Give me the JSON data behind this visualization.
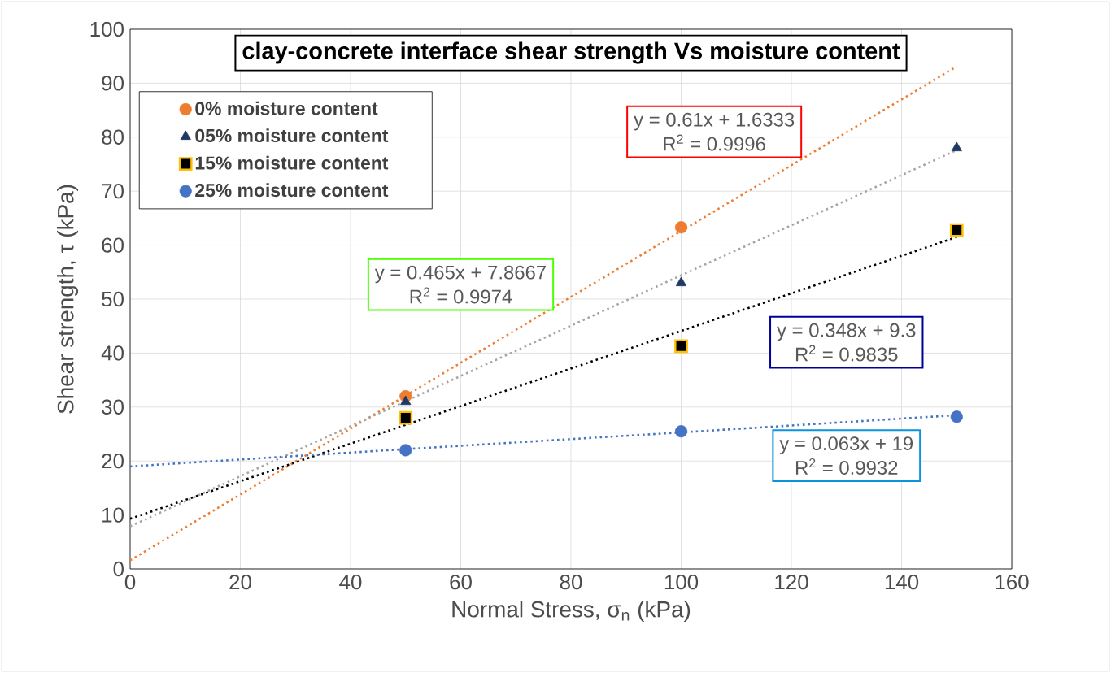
{
  "chart_data": {
    "type": "scatter",
    "title": "clay-concrete interface shear strength Vs moisture content",
    "xlabel": "Normal Stress, σ$_{n}$ (kPa)",
    "ylabel": "Shear strength, τ (kPa)",
    "x": [
      50,
      100,
      150
    ],
    "series": [
      {
        "name": "0% moisture content",
        "color": "#ed7d31",
        "marker": "circle",
        "values": [
          32,
          63.3,
          null
        ]
      },
      {
        "name": "05% moisture content",
        "color": "#1f3864",
        "marker": "triangle",
        "values": [
          31,
          53,
          78
        ]
      },
      {
        "name": "15% moisture content",
        "color": "#000000",
        "marker": "square",
        "values": [
          28,
          41.3,
          62.8
        ]
      },
      {
        "name": "25% moisture content",
        "color": "#4472c4",
        "marker": "circle",
        "values": [
          22,
          25.5,
          28.2
        ]
      },
      {
        "type": "line",
        "color": "#ed7d31",
        "line_style": "dotted",
        "marker": "none",
        "x": [
          0,
          50,
          100,
          150
        ],
        "values": [
          1.6,
          32.1,
          62.6,
          93.1
        ]
      },
      {
        "type": "line",
        "color": "#a5a5a5",
        "line_style": "dotted",
        "marker": "none",
        "x": [
          0,
          50,
          100,
          150
        ],
        "values": [
          7.9,
          31.1,
          54.4,
          77.6
        ]
      },
      {
        "type": "line",
        "color": "#000000",
        "line_style": "dotted",
        "marker": "none",
        "x": [
          0,
          50,
          100,
          150
        ],
        "values": [
          9.3,
          26.7,
          44.1,
          61.5
        ]
      },
      {
        "type": "line",
        "color": "#4472c4",
        "line_style": "dotted",
        "marker": "none",
        "x": [
          0,
          50,
          100,
          150
        ],
        "values": [
          19,
          22.2,
          25.3,
          28.5
        ]
      }
    ],
    "annotations": [
      "y = 0.61x + 1.6333",
      "R$^{2}$ = 0.9996",
      "y = 0.465x + 7.8667",
      "R$^{2}$ = 0.9974",
      "y = 0.348x + 9.3",
      "R$^{2}$ = 0.9835",
      "y = 0.063x + 19",
      "R$^{2}$ = 0.9932"
    ],
    "xlim": [
      0,
      160
    ],
    "ylim": [
      0,
      100
    ],
    "xticks": [
      0,
      20,
      40,
      60,
      80,
      100,
      120,
      140,
      160
    ],
    "yticks": [
      0,
      10,
      20,
      30,
      40,
      50,
      60,
      70,
      80,
      90,
      100
    ],
    "grid": true,
    "legend": "top left"
  }
}
